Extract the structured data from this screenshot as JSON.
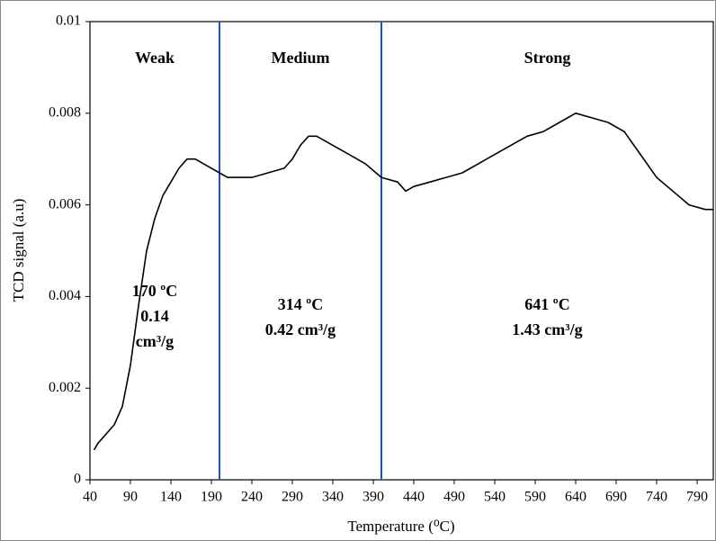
{
  "chart_data": {
    "type": "line",
    "xlabel": "Temperature (⁰C)",
    "ylabel": "TCD signal (a.u)",
    "x": [
      45,
      50,
      60,
      70,
      80,
      90,
      100,
      110,
      120,
      130,
      140,
      150,
      160,
      170,
      180,
      190,
      200,
      210,
      220,
      240,
      260,
      280,
      290,
      300,
      310,
      320,
      330,
      340,
      360,
      380,
      400,
      420,
      430,
      440,
      460,
      480,
      500,
      520,
      540,
      560,
      580,
      600,
      620,
      640,
      660,
      680,
      700,
      720,
      740,
      760,
      780,
      800,
      810
    ],
    "series": [
      {
        "name": "TCD signal",
        "color": "#000000",
        "values": [
          0.00065,
          0.0008,
          0.001,
          0.0012,
          0.0016,
          0.0025,
          0.0038,
          0.005,
          0.0057,
          0.0062,
          0.0065,
          0.0068,
          0.007,
          0.007,
          0.0069,
          0.0068,
          0.0067,
          0.0066,
          0.0066,
          0.0066,
          0.0067,
          0.0068,
          0.007,
          0.0073,
          0.0075,
          0.0075,
          0.0074,
          0.0073,
          0.0071,
          0.0069,
          0.0066,
          0.0065,
          0.0063,
          0.0064,
          0.0065,
          0.0066,
          0.0067,
          0.0069,
          0.0071,
          0.0073,
          0.0075,
          0.0076,
          0.0078,
          0.008,
          0.0079,
          0.0078,
          0.0076,
          0.0071,
          0.0066,
          0.0063,
          0.006,
          0.0059,
          0.0059
        ]
      }
    ],
    "xlim": [
      40,
      810
    ],
    "ylim": [
      0,
      0.01
    ],
    "xticks": [
      40,
      90,
      140,
      190,
      240,
      290,
      340,
      390,
      440,
      490,
      540,
      590,
      640,
      690,
      740,
      790
    ],
    "yticks": [
      0,
      0.002,
      0.004,
      0.006,
      0.008,
      0.01
    ],
    "boundaries": [
      200,
      400
    ],
    "boundary_color": "#1f4fd0",
    "regions": [
      {
        "name": "Weak",
        "text": [
          "170 ºC",
          "0.14",
          "cm³/g"
        ]
      },
      {
        "name": "Medium",
        "text": [
          "314 ºC",
          "0.42 cm³/g"
        ]
      },
      {
        "name": "Strong",
        "text": [
          "641 ºC",
          "1.43 cm³/g"
        ]
      }
    ]
  }
}
